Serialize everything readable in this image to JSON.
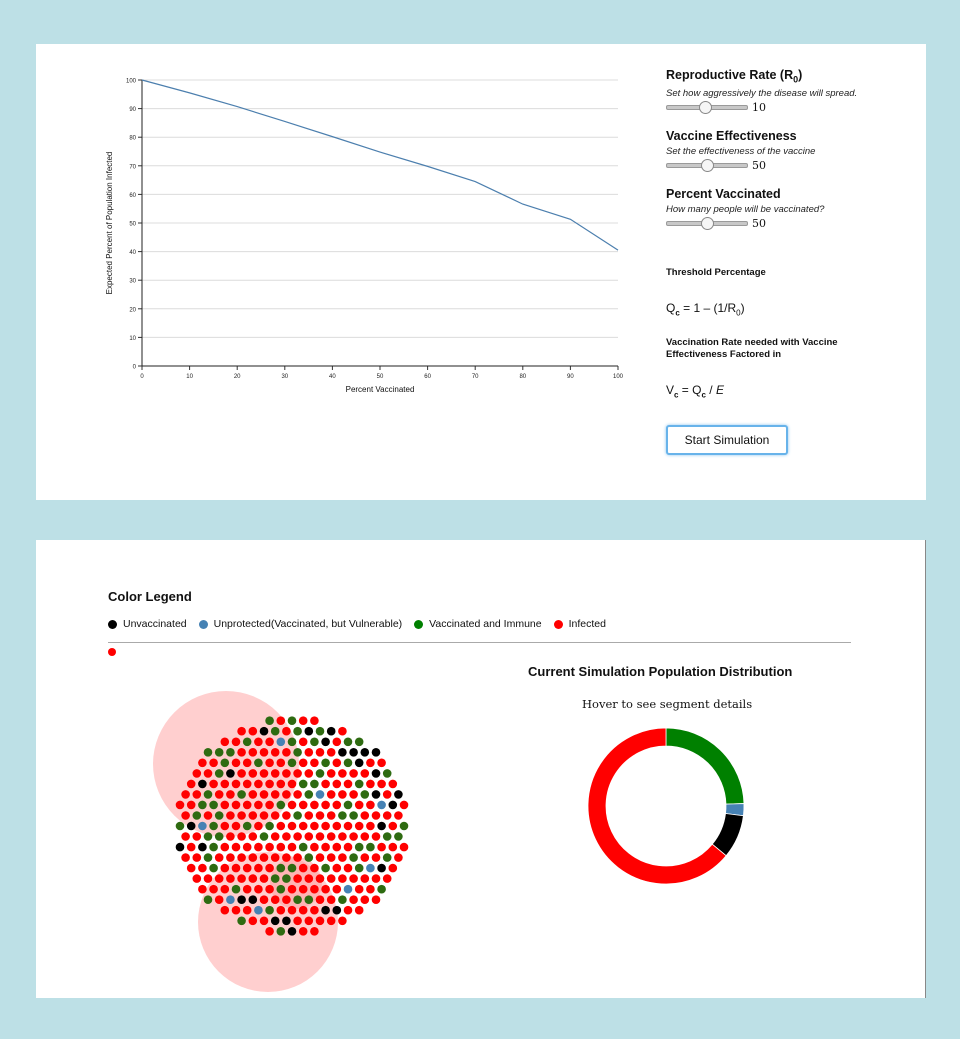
{
  "chart_data": {
    "type": "line",
    "title": "",
    "xlabel": "Percent Vaccinated",
    "ylabel": "Expected Percent of Population Infected",
    "xlim": [
      0,
      100
    ],
    "ylim": [
      0,
      100
    ],
    "xticks": [
      0,
      10,
      20,
      30,
      40,
      50,
      60,
      70,
      80,
      90,
      100
    ],
    "yticks": [
      0,
      10,
      20,
      30,
      40,
      50,
      60,
      70,
      80,
      90,
      100
    ],
    "grid": "horizontal",
    "x": [
      0,
      10,
      20,
      30,
      40,
      50,
      60,
      70,
      80,
      90,
      100
    ],
    "y": [
      100,
      95.5,
      90.7,
      85.5,
      80.2,
      74.8,
      69.8,
      64.5,
      56.6,
      51.3,
      40.5
    ],
    "color": "#4c7fae"
  },
  "controls": {
    "r0": {
      "title": "Reproductive Rate (R",
      "title_sub": "0",
      "title_end": ")",
      "subtitle": "Set how aggressively the disease will spread.",
      "value": "10",
      "fraction": 0.48
    },
    "vaccine": {
      "title": "Vaccine Effectiveness",
      "subtitle": "Set the effectiveness of the vaccine",
      "value": "50",
      "fraction": 0.5
    },
    "percent": {
      "title": "Percent Vaccinated",
      "subtitle": "How many people will be vaccinated?",
      "value": "50",
      "fraction": 0.5
    },
    "threshold_title": "Threshold Percentage",
    "formula1": {
      "q": "Q",
      "q_sub": "c",
      "eq": " = 1 – (1/R",
      "r_sub": "0",
      "end": ")"
    },
    "vacc_rate_title": "Vaccination Rate needed with Vaccine Effectiveness Factored in",
    "formula2": {
      "v": "V",
      "v_sub": "c",
      "eq": " = Q",
      "q_sub": "c",
      "slash": " / ",
      "e": "E"
    },
    "start_label": "Start Simulation"
  },
  "legend": {
    "title": "Color Legend",
    "items": [
      {
        "label": "Unvaccinated",
        "color": "#000000"
      },
      {
        "label": "Unprotected(Vaccinated, but Vulnerable)",
        "color": "#4682b4"
      },
      {
        "label": "Vaccinated and Immune",
        "color": "#008000"
      },
      {
        "label": "Infected",
        "color": "#ff0000"
      }
    ]
  },
  "distribution": {
    "title": "Current Simulation Population Distribution",
    "hover_text": "Hover to see segment details",
    "segments": [
      {
        "name": "Vaccinated and Immune",
        "fraction": 0.245,
        "color": "#008000"
      },
      {
        "name": "Unprotected",
        "fraction": 0.025,
        "color": "#4682b4"
      },
      {
        "name": "Unvaccinated",
        "fraction": 0.09,
        "color": "#000000"
      },
      {
        "name": "Infected",
        "fraction": 0.64,
        "color": "#ff0000"
      }
    ]
  },
  "population": {
    "counts": {
      "unvaccinated": 26,
      "unprotected": 8,
      "immune": 70,
      "infected": 220
    },
    "colors": {
      "unvaccinated": "#000000",
      "unprotected": "#4682b4",
      "immune": "#2e6b11",
      "infected": "#ff0000"
    }
  }
}
